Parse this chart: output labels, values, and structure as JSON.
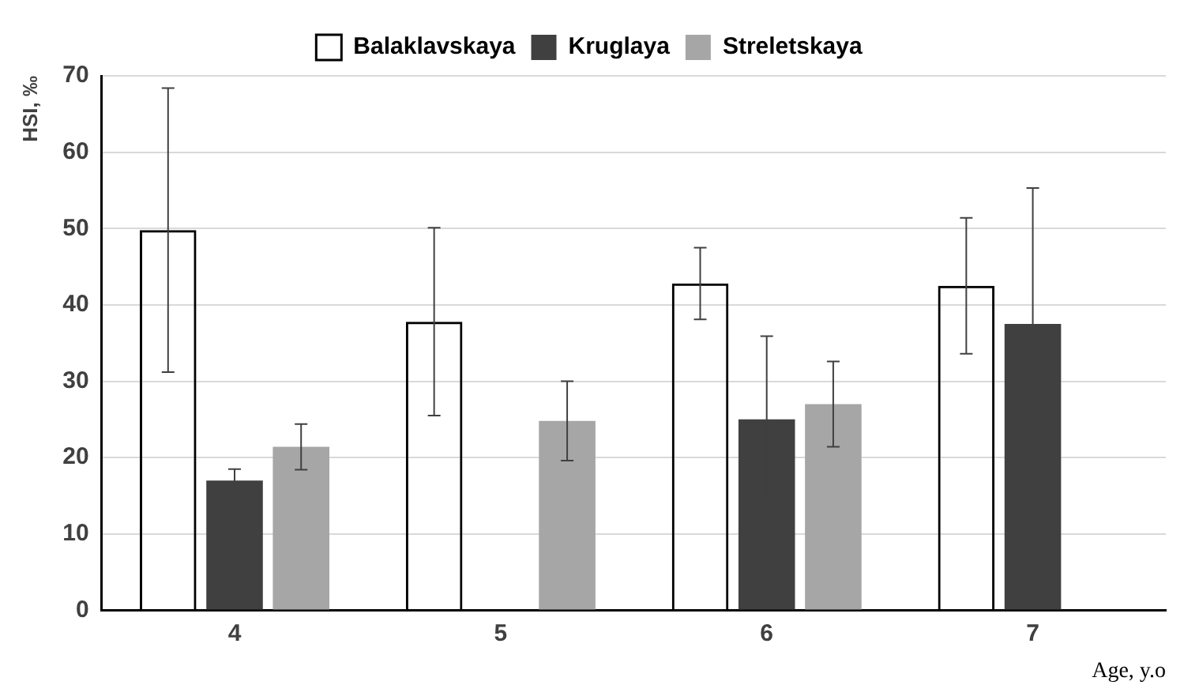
{
  "chart_data": {
    "type": "bar",
    "xlabel": "Age, y.o",
    "ylabel": "HSI, ‰",
    "categories": [
      "4",
      "5",
      "6",
      "7"
    ],
    "series": [
      {
        "name": "Balaklavskaya",
        "color": "#000000",
        "values": [
          49.8,
          37.8,
          42.8,
          42.5
        ],
        "errors": [
          18.6,
          12.3,
          4.7,
          8.9
        ]
      },
      {
        "name": "Kruglaya",
        "color": "#404040",
        "values": [
          17,
          null,
          25,
          37.5
        ],
        "errors": [
          1.5,
          null,
          10.9,
          17.8
        ]
      },
      {
        "name": "Streletskaya",
        "color": "#a6a6a6",
        "values": [
          21.4,
          24.8,
          27,
          null
        ],
        "errors": [
          3,
          5.2,
          5.6,
          null
        ]
      }
    ],
    "ylim": [
      0,
      70
    ],
    "yticks": [
      0,
      10,
      20,
      30,
      40,
      50,
      60,
      70
    ],
    "grid": "y",
    "legend": "top"
  }
}
